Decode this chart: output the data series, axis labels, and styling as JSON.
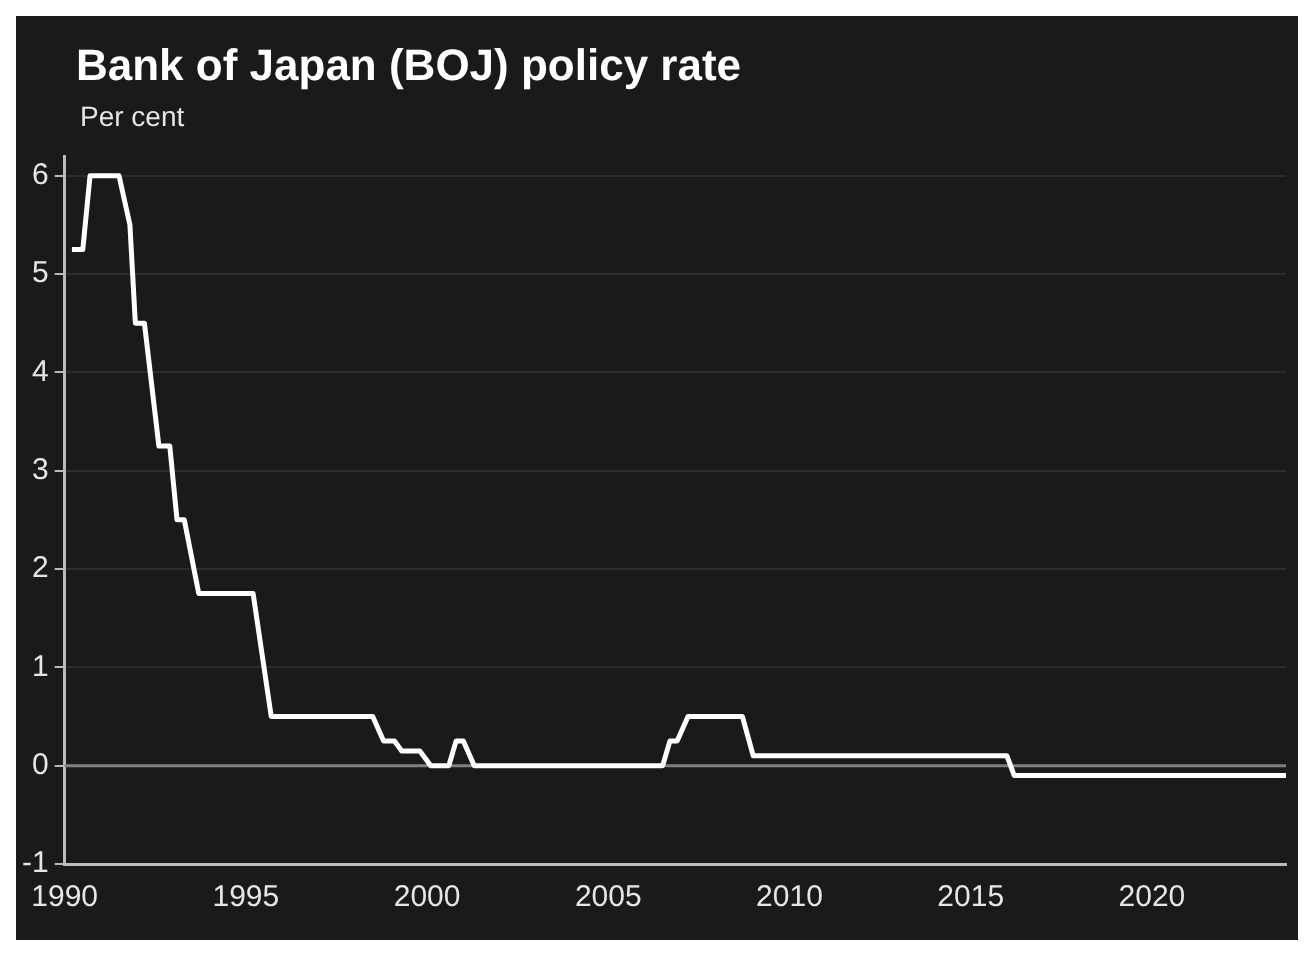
{
  "chart_data": {
    "type": "line",
    "title": "Bank of Japan (BOJ) policy rate",
    "ylabel": "Per cent",
    "x": [
      1990.2,
      1990.5,
      1990.7,
      1991.5,
      1991.8,
      1991.95,
      1992.2,
      1992.6,
      1992.9,
      1993.1,
      1993.3,
      1993.7,
      1995.2,
      1995.7,
      1998.5,
      1998.8,
      1999.1,
      1999.3,
      1999.8,
      2000.1,
      2000.6,
      2000.8,
      2001.0,
      2001.3,
      2006.5,
      2006.7,
      2006.9,
      2007.2,
      2008.7,
      2009.0,
      2016.0,
      2016.2,
      2023.7
    ],
    "series": [
      {
        "color": "#ffffff",
        "values": [
          5.25,
          5.25,
          6,
          6,
          5.5,
          4.5,
          4.5,
          3.25,
          3.25,
          2.5,
          2.5,
          1.75,
          1.75,
          0.5,
          0.5,
          0.25,
          0.25,
          0.15,
          0.15,
          0,
          0,
          0.25,
          0.25,
          0,
          0,
          0.25,
          0.25,
          0.5,
          0.5,
          0.1,
          0.1,
          -0.1,
          -0.1
        ]
      }
    ],
    "xlim": [
      1990,
      2023.7
    ],
    "xticks": [
      1990,
      1995,
      2000,
      2005,
      2010,
      2015,
      2020
    ],
    "ylim": [
      -1,
      6.2
    ],
    "yticks": [
      -1,
      0,
      1,
      2,
      3,
      4,
      5,
      6
    ],
    "ref_lines": [
      {
        "axis": "y",
        "value": 0,
        "color": "#808080"
      }
    ],
    "grid": "y",
    "legend": false,
    "marker": "none",
    "line_style": "solid"
  }
}
